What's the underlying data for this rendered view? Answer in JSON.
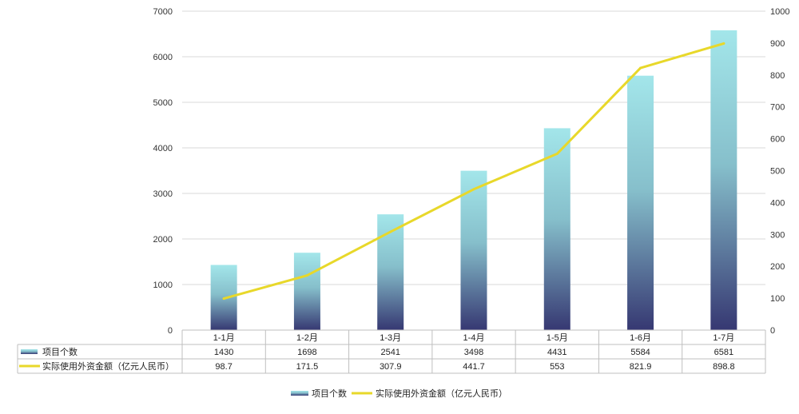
{
  "chart_data": {
    "type": "bar",
    "categories": [
      "1-1月",
      "1-2月",
      "1-3月",
      "1-4月",
      "1-5月",
      "1-6月",
      "1-7月"
    ],
    "series": [
      {
        "name": "项目个数",
        "type": "bar",
        "axis": "left",
        "values": [
          1430,
          1698,
          2541,
          3498,
          4431,
          5584,
          6581
        ],
        "labels": [
          "1430",
          "1698",
          "2541",
          "3498",
          "4431",
          "5584",
          "6581"
        ],
        "color_top": "#a3e6ea",
        "color_bottom": "#363872"
      },
      {
        "name": "实际使用外资金额（亿元人民币）",
        "type": "line",
        "axis": "right",
        "values": [
          98.7,
          171.5,
          307.9,
          441.7,
          553,
          821.9,
          898.8
        ],
        "labels": [
          "98.7",
          "171.5",
          "307.9",
          "441.7",
          "553",
          "821.9",
          "898.8"
        ],
        "color": "#e8d82a"
      }
    ],
    "ylim_left": [
      0,
      7000
    ],
    "ylim_right": [
      0,
      1000
    ],
    "left_ticks": [
      "0",
      "1000",
      "2000",
      "3000",
      "4000",
      "5000",
      "6000",
      "7000"
    ],
    "right_ticks": [
      "0",
      "100",
      "200",
      "300",
      "400",
      "500",
      "600",
      "700",
      "800",
      "900",
      "1000"
    ],
    "grid": true,
    "legend_position": "bottom",
    "data_table": true
  }
}
